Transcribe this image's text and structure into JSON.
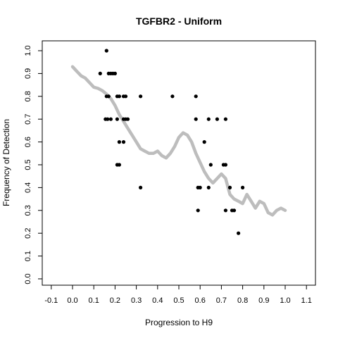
{
  "chart_data": {
    "type": "scatter",
    "title": "TGFBR2 - Uniform",
    "xlabel": "Progression to H9",
    "ylabel": "Frequency of Detection",
    "xlim": [
      -0.1,
      1.1
    ],
    "ylim": [
      0.0,
      1.0
    ],
    "xticks": [
      "-0.1",
      "0.0",
      "0.1",
      "0.2",
      "0.3",
      "0.4",
      "0.5",
      "0.6",
      "0.7",
      "0.8",
      "0.9",
      "1.0",
      "1.1"
    ],
    "yticks": [
      "0.0",
      "0.1",
      "0.2",
      "0.3",
      "0.4",
      "0.5",
      "0.6",
      "0.7",
      "0.8",
      "0.9",
      "1.0"
    ],
    "grid": false,
    "series": [
      {
        "kind": "points",
        "color": "#000000",
        "points": [
          [
            0.16,
            1.0
          ],
          [
            0.13,
            0.9
          ],
          [
            0.17,
            0.9
          ],
          [
            0.18,
            0.9
          ],
          [
            0.19,
            0.9
          ],
          [
            0.2,
            0.9
          ],
          [
            0.16,
            0.8
          ],
          [
            0.17,
            0.8
          ],
          [
            0.21,
            0.8
          ],
          [
            0.22,
            0.8
          ],
          [
            0.24,
            0.8
          ],
          [
            0.25,
            0.8
          ],
          [
            0.32,
            0.8
          ],
          [
            0.47,
            0.8
          ],
          [
            0.58,
            0.8
          ],
          [
            0.155,
            0.7
          ],
          [
            0.165,
            0.7
          ],
          [
            0.18,
            0.7
          ],
          [
            0.21,
            0.7
          ],
          [
            0.24,
            0.7
          ],
          [
            0.25,
            0.7
          ],
          [
            0.26,
            0.7
          ],
          [
            0.58,
            0.7
          ],
          [
            0.64,
            0.7
          ],
          [
            0.68,
            0.7
          ],
          [
            0.72,
            0.7
          ],
          [
            0.22,
            0.6
          ],
          [
            0.24,
            0.6
          ],
          [
            0.62,
            0.6
          ],
          [
            0.21,
            0.5
          ],
          [
            0.22,
            0.5
          ],
          [
            0.65,
            0.5
          ],
          [
            0.71,
            0.5
          ],
          [
            0.72,
            0.5
          ],
          [
            0.32,
            0.4
          ],
          [
            0.59,
            0.4
          ],
          [
            0.6,
            0.4
          ],
          [
            0.64,
            0.4
          ],
          [
            0.74,
            0.4
          ],
          [
            0.8,
            0.4
          ],
          [
            0.59,
            0.3
          ],
          [
            0.72,
            0.3
          ],
          [
            0.75,
            0.3
          ],
          [
            0.76,
            0.3
          ],
          [
            0.78,
            0.2
          ]
        ]
      },
      {
        "kind": "smoothed-trend",
        "color": "#bdbdbd",
        "points": [
          [
            0.0,
            0.93
          ],
          [
            0.02,
            0.91
          ],
          [
            0.04,
            0.89
          ],
          [
            0.06,
            0.88
          ],
          [
            0.08,
            0.86
          ],
          [
            0.1,
            0.84
          ],
          [
            0.12,
            0.835
          ],
          [
            0.14,
            0.825
          ],
          [
            0.16,
            0.81
          ],
          [
            0.18,
            0.79
          ],
          [
            0.2,
            0.76
          ],
          [
            0.22,
            0.72
          ],
          [
            0.24,
            0.69
          ],
          [
            0.26,
            0.66
          ],
          [
            0.28,
            0.63
          ],
          [
            0.3,
            0.6
          ],
          [
            0.32,
            0.57
          ],
          [
            0.34,
            0.56
          ],
          [
            0.36,
            0.55
          ],
          [
            0.38,
            0.55
          ],
          [
            0.4,
            0.56
          ],
          [
            0.42,
            0.54
          ],
          [
            0.44,
            0.53
          ],
          [
            0.46,
            0.55
          ],
          [
            0.48,
            0.58
          ],
          [
            0.5,
            0.62
          ],
          [
            0.52,
            0.64
          ],
          [
            0.54,
            0.63
          ],
          [
            0.56,
            0.6
          ],
          [
            0.58,
            0.55
          ],
          [
            0.6,
            0.51
          ],
          [
            0.62,
            0.47
          ],
          [
            0.64,
            0.44
          ],
          [
            0.66,
            0.42
          ],
          [
            0.68,
            0.44
          ],
          [
            0.7,
            0.46
          ],
          [
            0.72,
            0.44
          ],
          [
            0.74,
            0.37
          ],
          [
            0.76,
            0.35
          ],
          [
            0.78,
            0.34
          ],
          [
            0.8,
            0.33
          ],
          [
            0.82,
            0.37
          ],
          [
            0.84,
            0.34
          ],
          [
            0.86,
            0.31
          ],
          [
            0.88,
            0.34
          ],
          [
            0.9,
            0.33
          ],
          [
            0.92,
            0.29
          ],
          [
            0.94,
            0.28
          ],
          [
            0.96,
            0.3
          ],
          [
            0.98,
            0.31
          ],
          [
            1.0,
            0.3
          ]
        ]
      }
    ]
  }
}
